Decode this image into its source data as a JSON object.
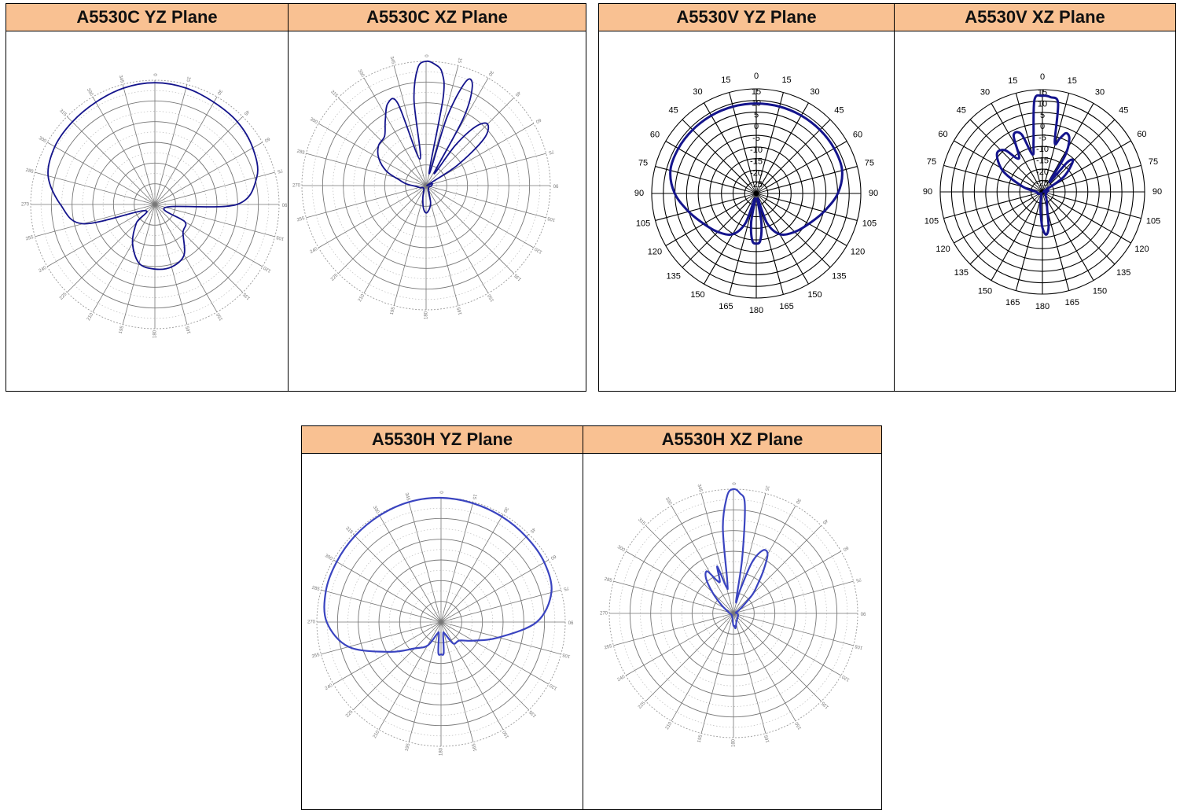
{
  "colors": {
    "header_bg": "#f9c192",
    "trace_dark": "#14148c",
    "trace_light": "#3a44c0"
  },
  "chart_data": [
    {
      "id": "a5530c-yz",
      "type": "polar",
      "title": "A5530C YZ Plane",
      "style": "fine",
      "trace": "dark",
      "angle_labels": [
        "0",
        "15",
        "30",
        "45",
        "60",
        "75",
        "90",
        "105",
        "120",
        "135",
        "150",
        "165",
        "180",
        "195",
        "210",
        "225",
        "240",
        "255",
        "270",
        "285",
        "300",
        "315",
        "330",
        "345"
      ],
      "theta_deg": [
        0,
        15,
        30,
        45,
        60,
        75,
        90,
        105,
        120,
        135,
        150,
        165,
        180,
        195,
        210,
        225,
        240,
        255,
        270,
        285,
        300,
        315,
        330,
        345
      ],
      "r_relative": [
        0.98,
        0.97,
        0.95,
        0.94,
        0.91,
        0.85,
        0.66,
        0.09,
        0.28,
        0.32,
        0.47,
        0.52,
        0.52,
        0.49,
        0.36,
        0.21,
        0.1,
        0.6,
        0.76,
        0.89,
        0.93,
        0.94,
        0.95,
        0.97
      ]
    },
    {
      "id": "a5530c-xz",
      "type": "polar",
      "title": "A5530C XZ Plane",
      "style": "fine",
      "trace": "dark",
      "angle_labels": [
        "0",
        "15",
        "30",
        "45",
        "60",
        "75",
        "90",
        "105",
        "120",
        "135",
        "150",
        "165",
        "180",
        "195",
        "210",
        "225",
        "240",
        "255",
        "270",
        "285",
        "300",
        "315",
        "330",
        "345"
      ],
      "theta_deg": [
        0,
        4,
        8,
        11,
        14,
        17,
        21,
        25,
        29,
        33,
        36,
        40,
        45,
        51,
        57,
        63,
        70,
        80,
        95,
        140,
        165,
        172,
        180,
        187,
        195,
        220,
        250,
        265,
        275,
        282,
        290,
        300,
        310,
        320,
        328,
        335,
        341,
        347,
        352,
        356
      ],
      "r_relative": [
        1.0,
        0.98,
        0.92,
        0.72,
        0.1,
        0.58,
        0.9,
        0.88,
        0.62,
        0.12,
        0.4,
        0.62,
        0.7,
        0.6,
        0.3,
        0.02,
        0.05,
        0.05,
        0.04,
        0.03,
        0.14,
        0.19,
        0.22,
        0.18,
        0.1,
        0.03,
        0.05,
        0.08,
        0.16,
        0.22,
        0.34,
        0.44,
        0.5,
        0.52,
        0.62,
        0.73,
        0.7,
        0.22,
        0.7,
        0.95
      ]
    },
    {
      "id": "a5530v-yz",
      "type": "polar",
      "title": "A5530V YZ Plane",
      "style": "bold",
      "trace": "dark",
      "angle_labels": [
        "0",
        "15",
        "30",
        "45",
        "60",
        "75",
        "90",
        "105",
        "120",
        "135",
        "150",
        "165",
        "180",
        "165",
        "150",
        "135",
        "120",
        "105",
        "90",
        "75",
        "60",
        "45",
        "30",
        "15"
      ],
      "radial_labels": [
        "15",
        "10",
        "5",
        "0",
        "-5",
        "-10",
        "-15",
        "-20",
        "-25"
      ],
      "theta_deg": [
        0,
        15,
        30,
        45,
        60,
        75,
        90,
        105,
        120,
        135,
        150,
        160,
        165,
        170,
        175,
        180,
        185,
        190,
        195,
        200,
        210,
        225,
        240,
        255,
        270,
        285,
        300,
        315,
        330,
        345
      ],
      "r_relative": [
        0.86,
        0.86,
        0.86,
        0.86,
        0.86,
        0.85,
        0.78,
        0.67,
        0.58,
        0.52,
        0.45,
        0.3,
        0.05,
        0.28,
        0.45,
        0.48,
        0.45,
        0.28,
        0.05,
        0.3,
        0.45,
        0.52,
        0.58,
        0.67,
        0.78,
        0.85,
        0.86,
        0.86,
        0.86,
        0.86
      ]
    },
    {
      "id": "a5530v-xz",
      "type": "polar",
      "title": "A5530V XZ Plane",
      "style": "bold",
      "trace": "dark",
      "angle_labels": [
        "0",
        "15",
        "30",
        "45",
        "60",
        "75",
        "90",
        "105",
        "120",
        "135",
        "150",
        "165",
        "180",
        "165",
        "150",
        "135",
        "120",
        "105",
        "90",
        "75",
        "60",
        "45",
        "30",
        "15"
      ],
      "radial_labels": [
        "15",
        "10",
        "5",
        "0",
        "-5",
        "-10",
        "-15",
        "-20",
        "-25"
      ],
      "theta_deg": [
        0,
        5,
        10,
        14,
        18,
        22,
        27,
        32,
        36,
        40,
        45,
        55,
        65,
        75,
        95,
        110,
        125,
        140,
        155,
        165,
        170,
        175,
        180,
        185,
        190,
        195,
        205,
        220,
        240,
        255,
        270,
        285,
        298,
        310,
        318,
        325,
        333,
        340,
        345,
        350,
        355
      ],
      "r_relative": [
        0.94,
        0.93,
        0.88,
        0.5,
        0.55,
        0.62,
        0.58,
        0.42,
        0.12,
        0.38,
        0.42,
        0.25,
        0.02,
        0.06,
        0.04,
        0.04,
        0.04,
        0.05,
        0.1,
        0.18,
        0.35,
        0.42,
        0.35,
        0.2,
        0.1,
        0.05,
        0.02,
        0.02,
        0.04,
        0.05,
        0.06,
        0.2,
        0.44,
        0.58,
        0.55,
        0.4,
        0.62,
        0.6,
        0.38,
        0.5,
        0.9
      ]
    },
    {
      "id": "a5530h-yz",
      "type": "polar",
      "title": "A5530H YZ Plane",
      "style": "fine",
      "trace": "light",
      "angle_labels": [
        "0",
        "15",
        "30",
        "45",
        "60",
        "75",
        "90",
        "105",
        "120",
        "135",
        "150",
        "165",
        "180",
        "195",
        "210",
        "225",
        "240",
        "255",
        "270",
        "285",
        "300",
        "315",
        "330",
        "345"
      ],
      "theta_deg": [
        0,
        15,
        30,
        45,
        60,
        75,
        90,
        105,
        120,
        135,
        150,
        162,
        170,
        175,
        180,
        185,
        190,
        198,
        210,
        225,
        240,
        255,
        270,
        285,
        300,
        315,
        330,
        345
      ],
      "r_relative": [
        1.0,
        0.99,
        0.98,
        0.97,
        0.96,
        0.92,
        0.77,
        0.48,
        0.3,
        0.21,
        0.2,
        0.1,
        0.1,
        0.25,
        0.26,
        0.25,
        0.1,
        0.1,
        0.22,
        0.3,
        0.48,
        0.77,
        0.92,
        0.96,
        0.97,
        0.98,
        0.99,
        1.0
      ]
    },
    {
      "id": "a5530h-xz",
      "type": "polar",
      "title": "A5530H XZ Plane",
      "style": "fine",
      "trace": "light",
      "angle_labels": [
        "0",
        "15",
        "30",
        "45",
        "60",
        "75",
        "90",
        "105",
        "120",
        "135",
        "150",
        "165",
        "180",
        "195",
        "210",
        "225",
        "240",
        "255",
        "270",
        "285",
        "300",
        "315",
        "330",
        "345"
      ],
      "theta_deg": [
        0,
        3,
        6,
        9,
        12,
        16,
        20,
        25,
        30,
        35,
        40,
        45,
        50,
        60,
        70,
        90,
        110,
        140,
        160,
        172,
        176,
        180,
        184,
        188,
        200,
        225,
        250,
        270,
        290,
        305,
        315,
        322,
        328,
        333,
        337,
        341,
        345,
        349,
        353,
        357
      ],
      "r_relative": [
        1.0,
        0.97,
        0.88,
        0.45,
        0.1,
        0.2,
        0.44,
        0.56,
        0.55,
        0.42,
        0.3,
        0.22,
        0.12,
        0.05,
        0.02,
        0.03,
        0.04,
        0.05,
        0.07,
        0.12,
        0.1,
        0.1,
        0.07,
        0.05,
        0.03,
        0.02,
        0.02,
        0.03,
        0.05,
        0.12,
        0.24,
        0.36,
        0.4,
        0.3,
        0.28,
        0.4,
        0.22,
        0.26,
        0.7,
        0.95
      ]
    }
  ]
}
